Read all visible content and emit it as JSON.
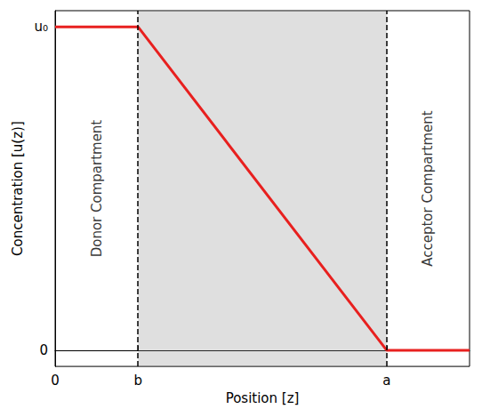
{
  "chart_data": {
    "type": "line",
    "x_label": "Position [z]",
    "y_label": "Concentration [u(z)]",
    "x": [
      0,
      1,
      4,
      5
    ],
    "values": [
      1,
      1,
      0,
      0
    ],
    "color": "#e8201f",
    "xlim": [
      0,
      5
    ],
    "ylim": [
      -0.05,
      1.05
    ],
    "xticks": [
      0,
      {
        "value": 1,
        "label": "b"
      },
      {
        "value": 4,
        "label": "a"
      }
    ],
    "yticks": [
      0,
      {
        "value": 1,
        "label": "u₀"
      }
    ],
    "grid": false,
    "annotations": [
      "Donor Compartment",
      "Acceptor Compartment"
    ]
  }
}
